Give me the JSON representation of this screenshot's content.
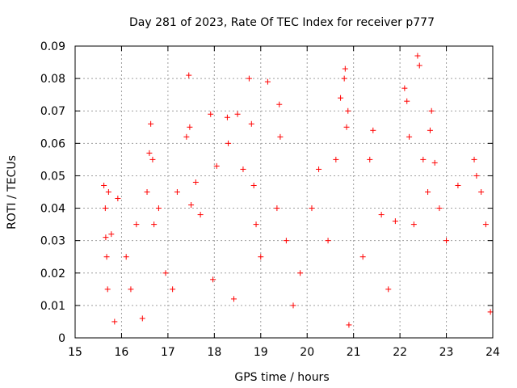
{
  "chart_data": {
    "type": "scatter",
    "title": "Day 281 of 2023, Rate Of TEC Index for receiver p777",
    "xlabel": "GPS time / hours",
    "ylabel": "ROTI / TECUs",
    "xlim": [
      15,
      24
    ],
    "ylim": [
      0,
      0.09
    ],
    "x_ticks": [
      "15",
      "16",
      "17",
      "18",
      "19",
      "20",
      "21",
      "22",
      "23",
      "24"
    ],
    "y_ticks": [
      "0",
      "0.01",
      "0.02",
      "0.03",
      "0.04",
      "0.05",
      "0.06",
      "0.07",
      "0.08",
      "0.09"
    ],
    "grid": true,
    "marker": "plus",
    "series_color": "#ff0000",
    "series": [
      {
        "name": "ROTI",
        "x": [
          15.62,
          15.65,
          15.66,
          15.68,
          15.7,
          15.72,
          15.78,
          15.85,
          15.92,
          16.1,
          16.2,
          16.32,
          16.45,
          16.55,
          16.6,
          16.63,
          16.67,
          16.7,
          16.8,
          16.95,
          17.1,
          17.2,
          17.4,
          17.45,
          17.47,
          17.5,
          17.6,
          17.7,
          17.92,
          17.97,
          18.05,
          18.28,
          18.3,
          18.42,
          18.5,
          18.62,
          18.75,
          18.8,
          18.85,
          18.9,
          19.0,
          19.15,
          19.35,
          19.4,
          19.42,
          19.55,
          19.7,
          19.85,
          20.1,
          20.25,
          20.45,
          20.62,
          20.72,
          20.8,
          20.82,
          20.85,
          20.88,
          20.9,
          21.2,
          21.35,
          21.42,
          21.6,
          21.75,
          21.9,
          22.1,
          22.15,
          22.2,
          22.3,
          22.38,
          22.42,
          22.5,
          22.6,
          22.65,
          22.68,
          22.75,
          22.85,
          23.0,
          23.25,
          23.6,
          23.65,
          23.75,
          23.85,
          23.95
        ],
        "y": [
          0.047,
          0.04,
          0.031,
          0.025,
          0.015,
          0.045,
          0.032,
          0.005,
          0.043,
          0.025,
          0.015,
          0.035,
          0.006,
          0.045,
          0.057,
          0.066,
          0.055,
          0.035,
          0.04,
          0.02,
          0.015,
          0.045,
          0.062,
          0.081,
          0.065,
          0.041,
          0.048,
          0.038,
          0.069,
          0.018,
          0.053,
          0.068,
          0.06,
          0.012,
          0.069,
          0.052,
          0.08,
          0.066,
          0.047,
          0.035,
          0.025,
          0.079,
          0.04,
          0.072,
          0.062,
          0.03,
          0.01,
          0.02,
          0.04,
          0.052,
          0.03,
          0.055,
          0.074,
          0.08,
          0.083,
          0.065,
          0.07,
          0.004,
          0.025,
          0.055,
          0.064,
          0.038,
          0.015,
          0.036,
          0.077,
          0.073,
          0.062,
          0.035,
          0.087,
          0.084,
          0.055,
          0.045,
          0.064,
          0.07,
          0.054,
          0.04,
          0.03,
          0.047,
          0.055,
          0.05,
          0.045,
          0.035,
          0.008
        ]
      }
    ]
  }
}
